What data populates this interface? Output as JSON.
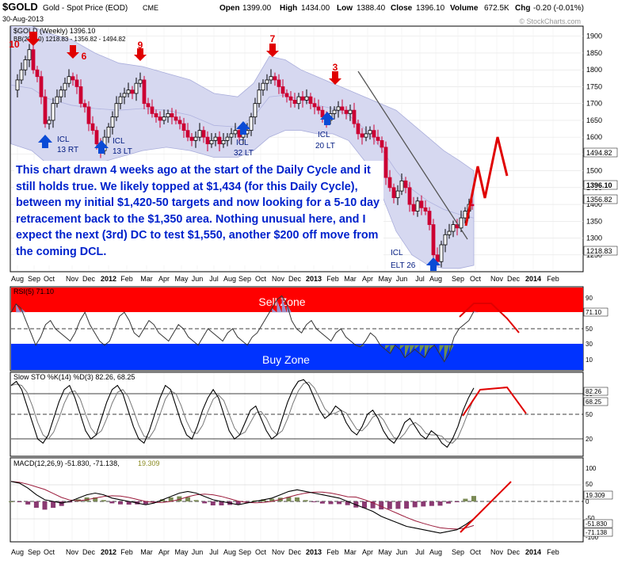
{
  "header": {
    "symbol": "$GOLD",
    "name": "Gold - Spot Price (EOD)",
    "exchange": "CME",
    "date": "30-Aug-2013",
    "open_label": "Open",
    "open": "1399.00",
    "high_label": "High",
    "high": "1434.00",
    "low_label": "Low",
    "low": "1388.40",
    "close_label": "Close",
    "close": "1396.10",
    "volume_label": "Volume",
    "volume": "672.5K",
    "chg_label": "Chg",
    "chg": "-0.20 (-0.01%)",
    "watermark": "© StockCharts.com"
  },
  "price_panel": {
    "legend_main": "$GOLD (Weekly) 1396.10",
    "legend_bb": "BB(20,2.0) 1218.83 - 1356.82 - 1494.82",
    "yticks": [
      1250,
      1300,
      1350,
      1400,
      1450,
      1500,
      1550,
      1600,
      1650,
      1700,
      1750,
      1800,
      1850,
      1900
    ],
    "right_tags": {
      "bb_upper": "1494.82",
      "close": "1396.10",
      "bb_mid": "1356.82",
      "bb_lower": "1218.83"
    },
    "cycle_numbers": [
      "10",
      "6",
      "9",
      "7",
      "3"
    ],
    "icl_labels": [
      {
        "top": "ICL",
        "bottom": "13 RT"
      },
      {
        "top": "ICL",
        "bottom": "13 LT"
      },
      {
        "top": "ICL",
        "bottom": "32 LT"
      },
      {
        "top": "ICL",
        "bottom": "20 LT"
      },
      {
        "top": "ICL",
        "bottom": "ELT 26"
      }
    ],
    "annotation": "This chart drawn 4 weeks ago at the start of the Daily Cycle and it still holds true.  We likely topped at $1,434 (for this Daily Cycle), between my initial $1,420-50 targets and now looking for a 5-10 day retracement back to the $1,350 area. Nothing unusual here, and I expect the next (3rd) DC to test $1,550, another $200 off move from the coming DCL."
  },
  "xaxis_labels": [
    "Aug",
    "Sep",
    "Oct",
    "Nov",
    "Dec",
    "2012",
    "Feb",
    "Mar",
    "Apr",
    "May",
    "Jun",
    "Jul",
    "Aug",
    "Sep",
    "Oct",
    "Nov",
    "Dec",
    "2013",
    "Feb",
    "Mar",
    "Apr",
    "May",
    "Jun",
    "Jul",
    "Aug",
    "Sep",
    "Oct",
    "Nov",
    "Dec",
    "2014",
    "Feb"
  ],
  "rsi_panel": {
    "legend": "RSI(5) 71.10",
    "sell_zone": "Sell Zone",
    "buy_zone": "Buy Zone",
    "yticks": [
      "90",
      "70",
      "50",
      "30",
      "10"
    ],
    "tag": "71.10"
  },
  "sto_panel": {
    "legend": "Slow STO %K(14) %D(3) 82.26, 68.25",
    "yticks": [
      "80",
      "50",
      "20"
    ],
    "tags": [
      "82.26",
      "68.25"
    ]
  },
  "macd_panel": {
    "legend_main": "MACD(12,26,9) -51.830, -71.138,",
    "legend_hist": "19.309",
    "yticks": [
      "100",
      "50",
      "0",
      "-50",
      "-100"
    ],
    "tags": [
      "19.309",
      "-51.830",
      "-71.138"
    ]
  },
  "colors": {
    "up_candle": "#000000",
    "down_candle": "#cc0033",
    "bb_band": "#d6d8f0",
    "sell_zone": "#ff0000",
    "buy_zone": "#0033ff",
    "annotation_text": "#0022cc",
    "arrow_up": "#0a4bd6",
    "arrow_down": "#e00000",
    "projection": "#e00000",
    "hist_pos": "#7a8a55",
    "hist_neg": "#8a3a72"
  },
  "chart_data": {
    "type": "line",
    "title": "$GOLD (Weekly) 1396.10",
    "x": [
      "2011-08",
      "2011-09",
      "2011-10",
      "2011-11",
      "2011-12",
      "2012-01",
      "2012-02",
      "2012-03",
      "2012-04",
      "2012-05",
      "2012-06",
      "2012-07",
      "2012-08",
      "2012-09",
      "2012-10",
      "2012-11",
      "2012-12",
      "2013-01",
      "2013-02",
      "2013-03",
      "2013-04",
      "2013-05",
      "2013-06",
      "2013-07",
      "2013-08"
    ],
    "series": [
      {
        "name": "$GOLD",
        "values": [
          1800,
          1750,
          1700,
          1750,
          1600,
          1650,
          1720,
          1670,
          1640,
          1580,
          1600,
          1610,
          1640,
          1760,
          1770,
          1720,
          1680,
          1680,
          1610,
          1590,
          1450,
          1400,
          1300,
          1290,
          1396
        ]
      },
      {
        "name": "BB(20,2.0)",
        "values": [
          1700,
          1720,
          1700,
          1720,
          1690,
          1680,
          1690,
          1680,
          1660,
          1640,
          1620,
          1620,
          1640,
          1690,
          1710,
          1700,
          1690,
          1680,
          1660,
          1640,
          1560,
          1480,
          1400,
          1350,
          1357
        ]
      }
    ],
    "ylim": [
      1200,
      1930
    ],
    "xlabel": "",
    "ylabel": "",
    "legend": "top-left",
    "grid": true,
    "annotations": [
      "10",
      "6",
      "9",
      "7",
      "3",
      "ICL 13 RT",
      "ICL 13 LT",
      "ICL 32 LT",
      "ICL 20 LT",
      "ICL ELT 26"
    ]
  }
}
